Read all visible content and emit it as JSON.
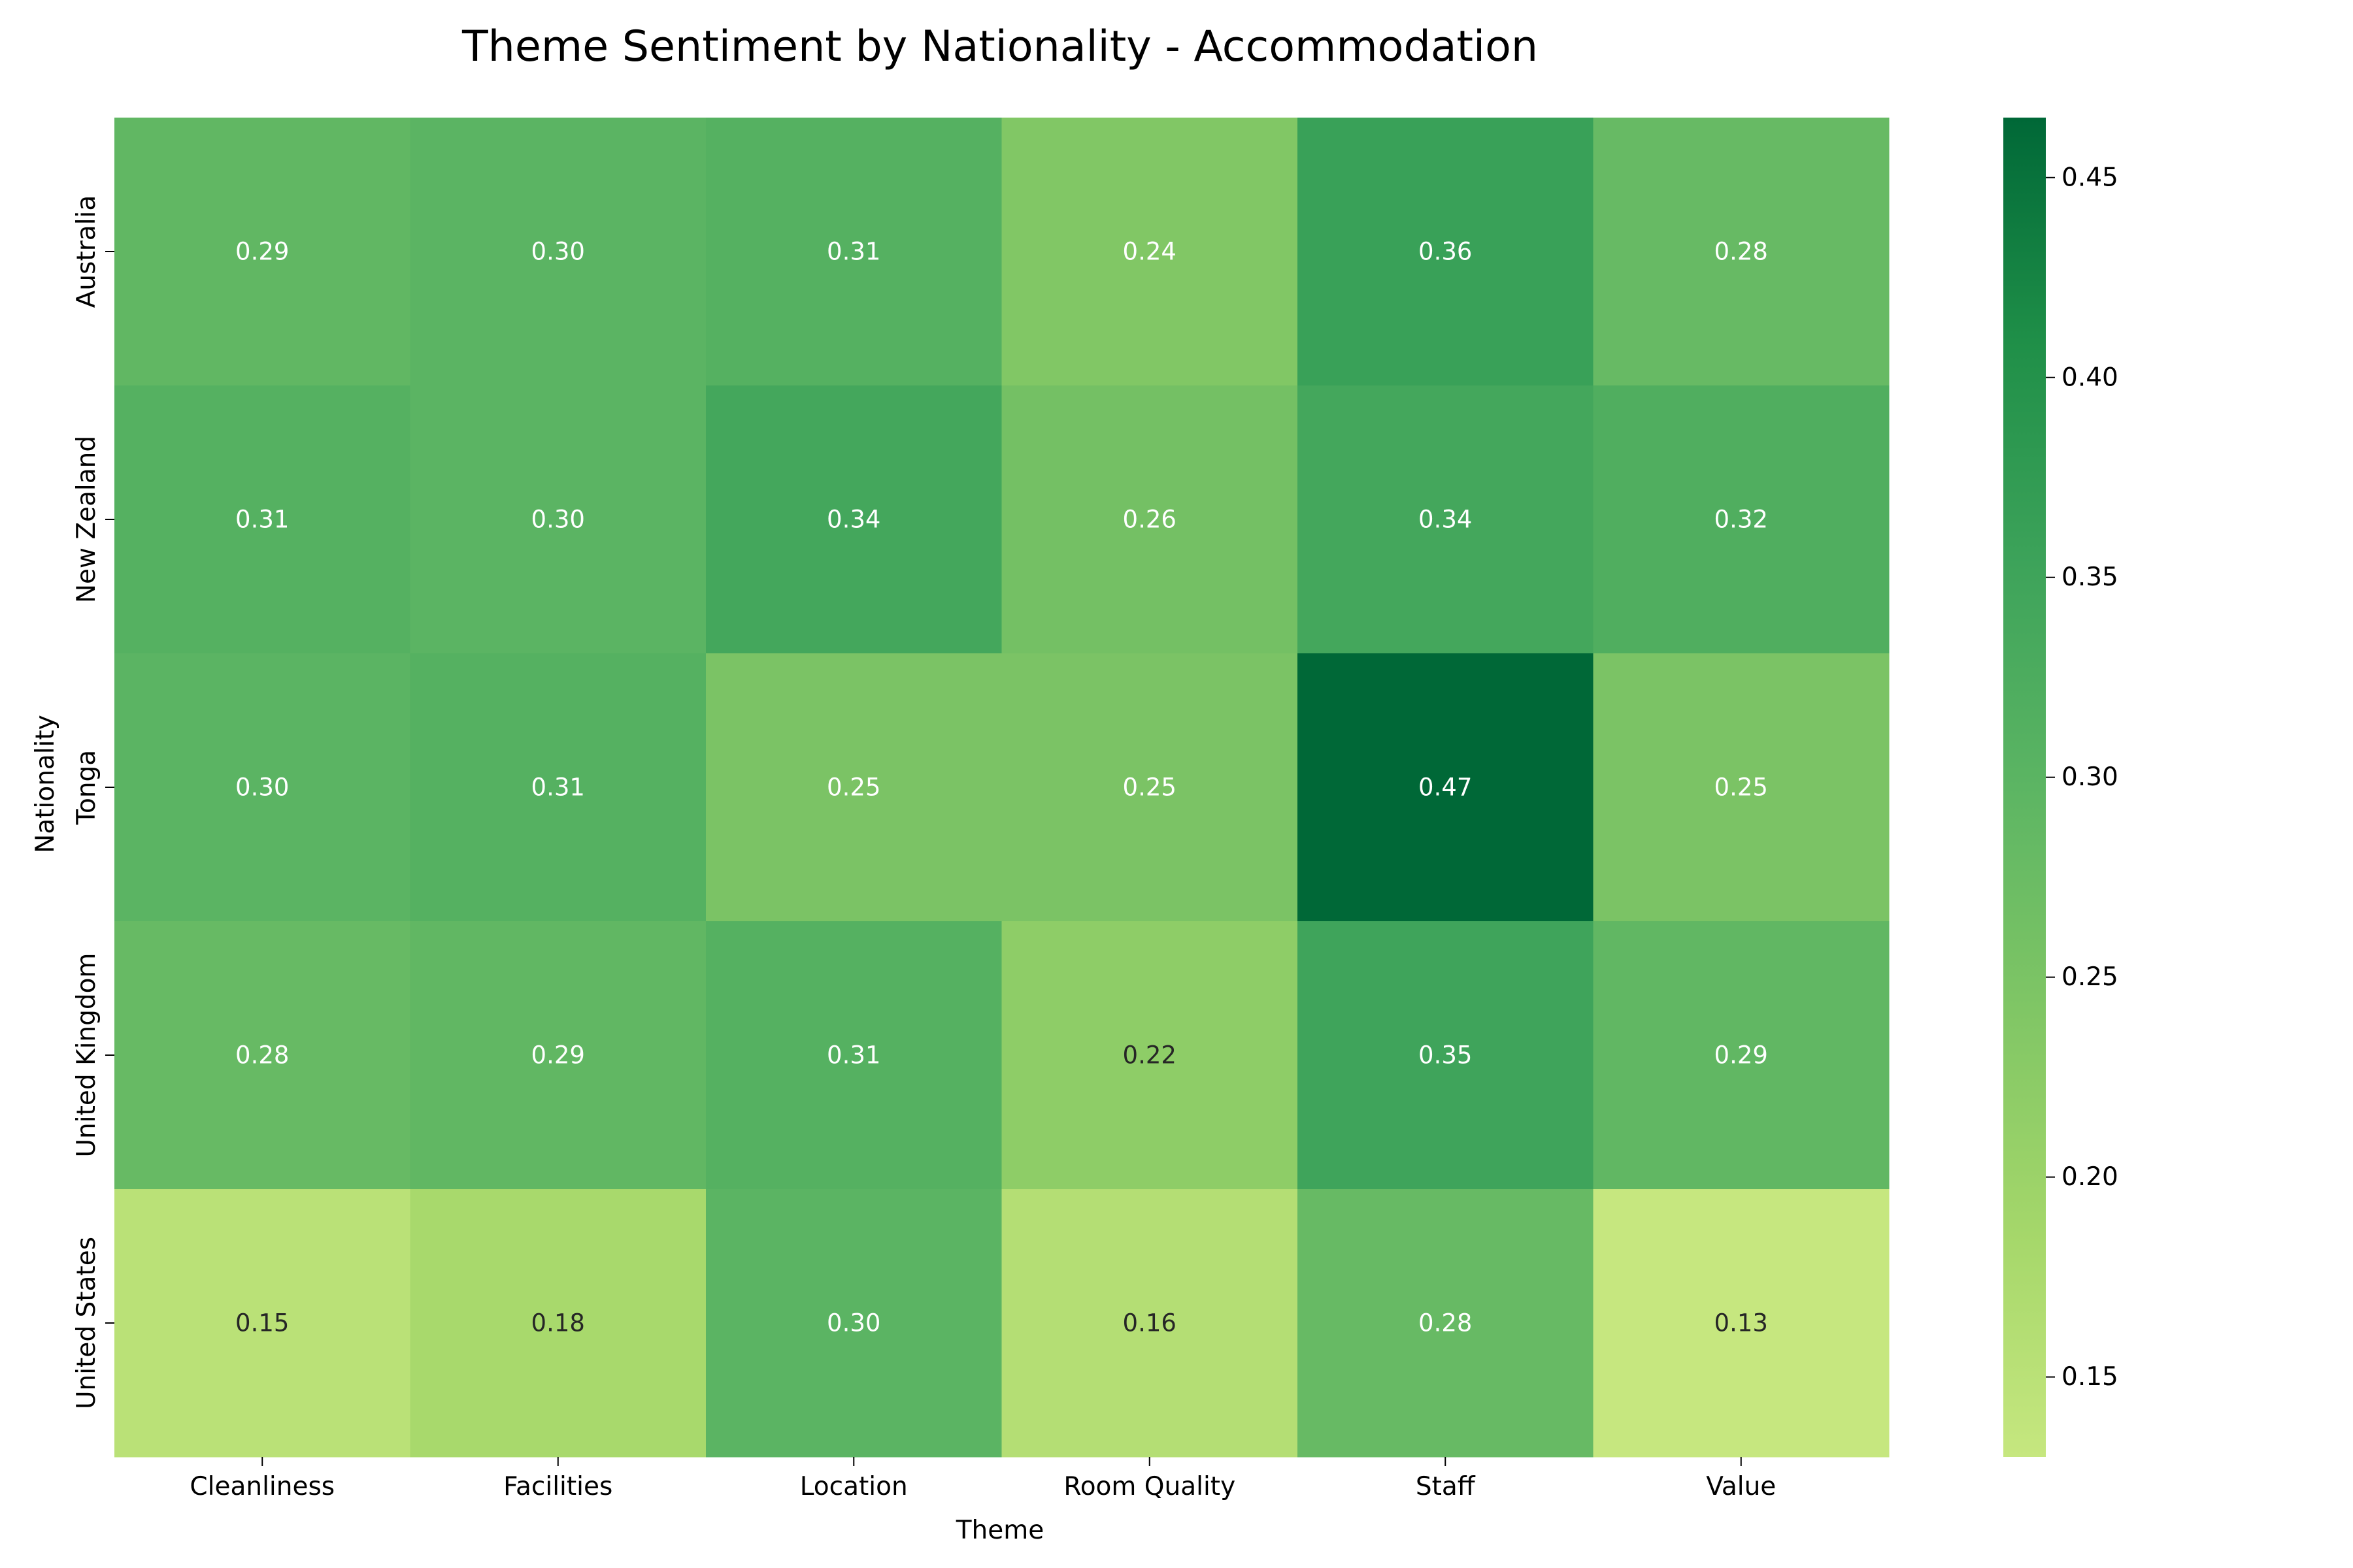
{
  "chart_data": {
    "type": "heatmap",
    "title": "Theme Sentiment by Nationality - Accommodation",
    "xlabel": "Theme",
    "ylabel": "Nationality",
    "x_categories": [
      "Cleanliness",
      "Facilities",
      "Location",
      "Room Quality",
      "Staff",
      "Value"
    ],
    "y_categories": [
      "Australia",
      "New Zealand",
      "Tonga",
      "United Kingdom",
      "United States"
    ],
    "values": [
      [
        0.29,
        0.3,
        0.31,
        0.24,
        0.36,
        0.28
      ],
      [
        0.31,
        0.3,
        0.34,
        0.26,
        0.34,
        0.32
      ],
      [
        0.3,
        0.31,
        0.25,
        0.25,
        0.47,
        0.25
      ],
      [
        0.28,
        0.29,
        0.31,
        0.22,
        0.35,
        0.29
      ],
      [
        0.15,
        0.18,
        0.3,
        0.16,
        0.28,
        0.13
      ]
    ],
    "value_format": "0.00",
    "colormap": "YlGn",
    "colorbar": {
      "range": [
        0.13,
        0.465
      ],
      "ticks": [
        0.15,
        0.2,
        0.25,
        0.3,
        0.35,
        0.4,
        0.45
      ],
      "tick_labels": [
        "0.15",
        "0.20",
        "0.25",
        "0.30",
        "0.35",
        "0.40",
        "0.45"
      ]
    },
    "colorbar_stops": [
      "#c6e77f",
      "#a5d76a",
      "#80c665",
      "#5cb563",
      "#3da35a",
      "#1f8f48",
      "#006837"
    ],
    "grid": false,
    "legend": "colorbar-right"
  }
}
